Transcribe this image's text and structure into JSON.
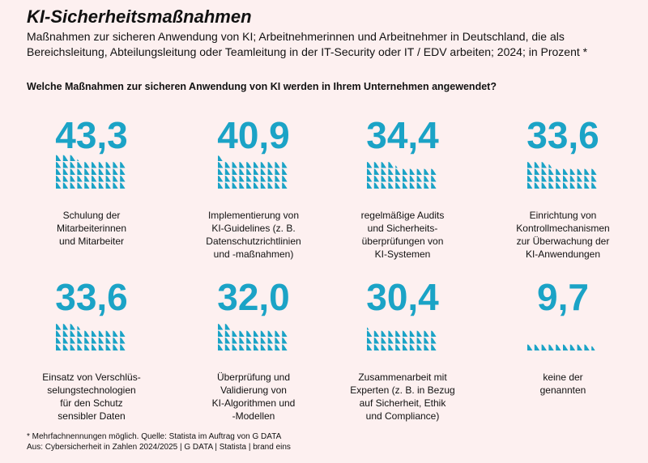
{
  "chart_data": {
    "type": "pictogram",
    "title": "KI-Sicherheitsmaßnahmen",
    "subtitle": "Maßnahmen zur sicheren Anwendung von KI; Arbeitnehmerinnen und Arbeitnehmer in Deutschland, die als Bereichsleitung, Abteilungsleitung oder Teamleitung in der IT-Security oder IT / EDV arbeiten; 2024; in Prozent *",
    "question": "Welche Maßnahmen zur sicheren Anwendung von KI werden in Ihrem Unternehmen angewendet?",
    "categories": [
      "Schulung der\nMitarbeiterinnen\nund Mitarbeiter",
      "Implementierung von\nKI-Guidelines (z. B.\nDatenschutzrichtlinien\nund -maßnahmen)",
      "regelmäßige Audits\nund Sicherheits-\nüberprüfungen von\nKI-Systemen",
      "Einrichtung von\nKontrollmechanismen\nzur Überwachung der\nKI-Anwendungen",
      "Einsatz von Verschlüs-\nselungstechnologien\nfür den Schutz\nsensibler Daten",
      "Überprüfung und\nValidierung von\nKI-Algorithmen und\n-Modellen",
      "Zusammenarbeit mit\nExperten (z. B. in Bezug\nauf Sicherheit, Ethik\nund Compliance)",
      "keine der\ngenannten"
    ],
    "values": [
      43.3,
      40.9,
      34.4,
      33.6,
      33.6,
      32.0,
      30.4,
      9.7
    ],
    "value_labels": [
      "43,3",
      "40,9",
      "34,4",
      "33,6",
      "33,6",
      "32,0",
      "30,4",
      "9,7"
    ],
    "color": "#1ba3c6",
    "footnote": "* Mehrfachnennungen möglich. Quelle: Statista im Auftrag von G DATA",
    "source": "Aus: Cybersicherheit in Zahlen 2024/2025 | G DATA | Statista | brand eins"
  }
}
